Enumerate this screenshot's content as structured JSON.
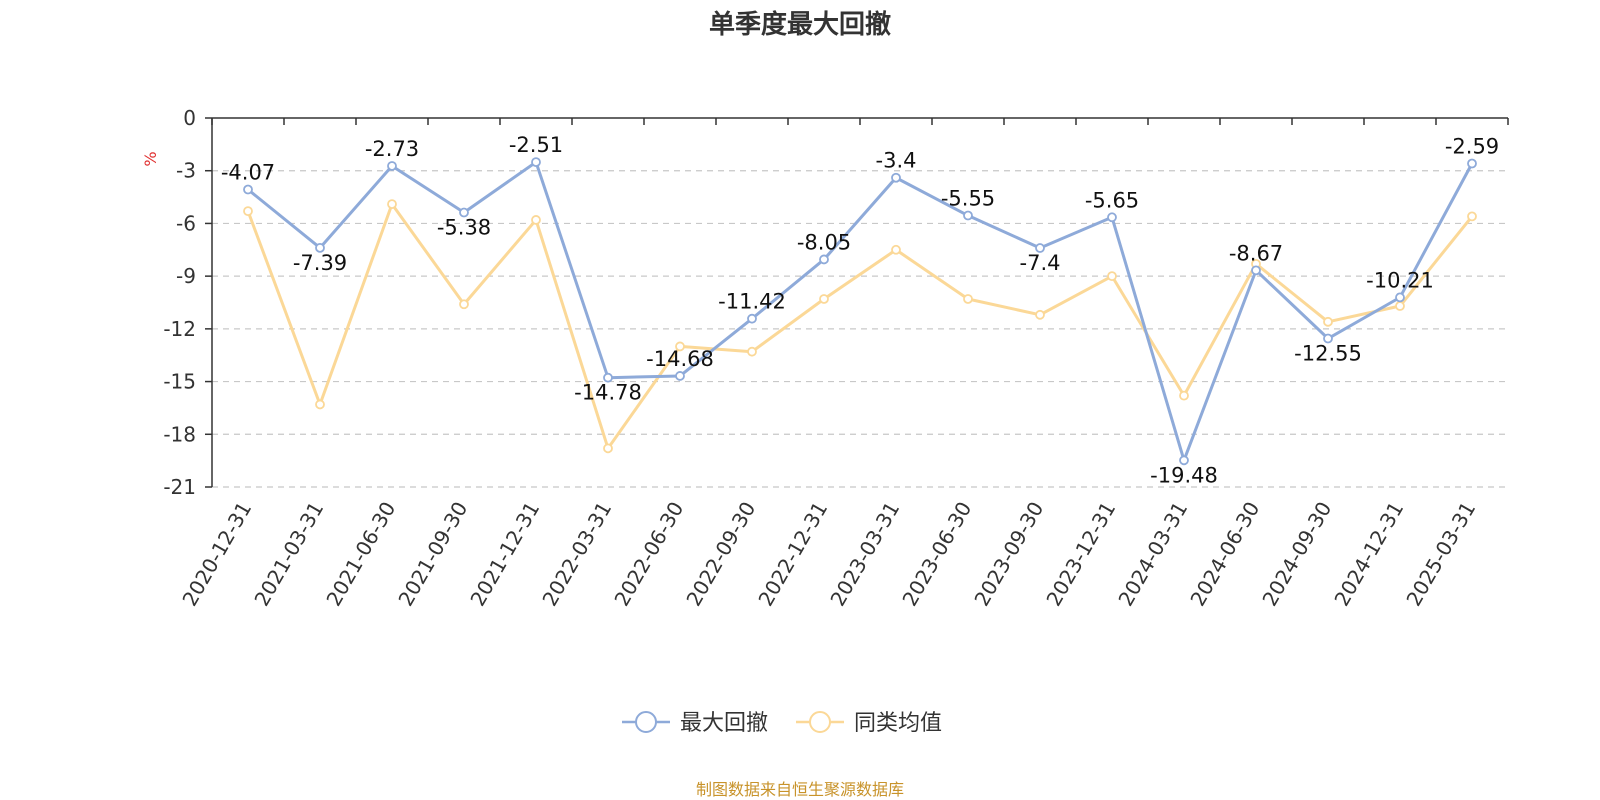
{
  "source_note": "制图数据来自恒生聚源数据库",
  "chart_data": {
    "type": "line",
    "title": "单季度最大回撤",
    "ylabel": "%",
    "xlabel": "",
    "ylim": [
      -21,
      0
    ],
    "yticks": [
      0,
      -3,
      -6,
      -9,
      -12,
      -15,
      -18,
      -21
    ],
    "grid": true,
    "legend_position": "bottom-center",
    "categories": [
      "2020-12-31",
      "2021-03-31",
      "2021-06-30",
      "2021-09-30",
      "2021-12-31",
      "2022-03-31",
      "2022-06-30",
      "2022-09-30",
      "2022-12-31",
      "2023-03-31",
      "2023-06-30",
      "2023-09-30",
      "2023-12-31",
      "2024-03-31",
      "2024-06-30",
      "2024-09-30",
      "2024-12-31",
      "2025-03-31"
    ],
    "series": [
      {
        "name": "最大回撤",
        "color": "#8eaad9",
        "show_labels": true,
        "values": [
          -4.07,
          -7.39,
          -2.73,
          -5.38,
          -2.51,
          -14.78,
          -14.68,
          -11.42,
          -8.05,
          -3.4,
          -5.55,
          -7.4,
          -5.65,
          -19.48,
          -8.67,
          -12.55,
          -10.21,
          -2.59
        ]
      },
      {
        "name": "同类均值",
        "color": "#fbd897",
        "show_labels": false,
        "values": [
          -5.3,
          -16.3,
          -4.9,
          -10.6,
          -5.8,
          -18.8,
          -13.0,
          -13.3,
          -10.3,
          -7.5,
          -10.3,
          -11.2,
          -9.0,
          -15.8,
          -8.3,
          -11.6,
          -10.7,
          -5.6
        ]
      }
    ]
  }
}
